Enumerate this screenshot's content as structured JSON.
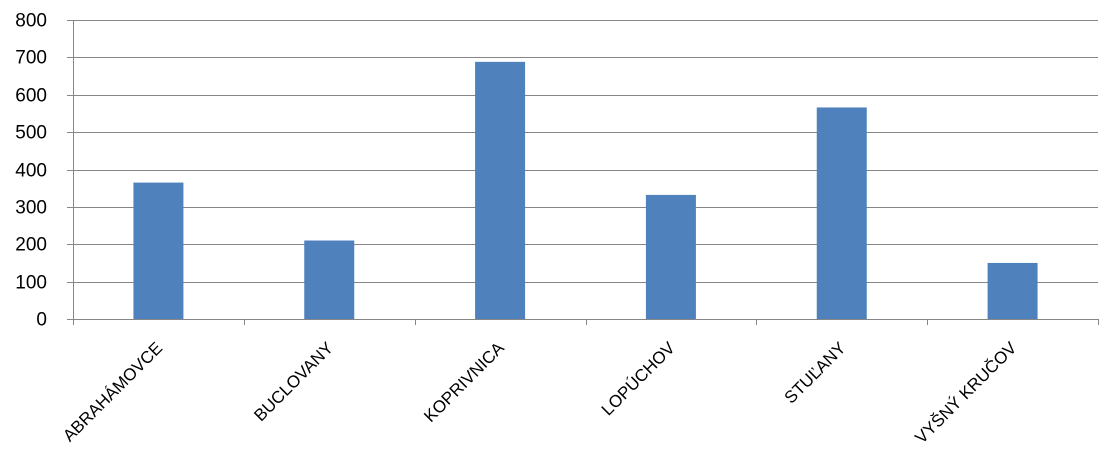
{
  "chart_data": {
    "type": "bar",
    "categories": [
      "ABRAHÁMOVCE",
      "BUCLOVANY",
      "KOPRIVNICA",
      "LOPÚCHOV",
      "STUĽANY",
      "VYŠNÝ KRUČOV"
    ],
    "values": [
      365,
      210,
      688,
      332,
      566,
      150
    ],
    "ylim": [
      0,
      800
    ],
    "yticks": [
      0,
      100,
      200,
      300,
      400,
      500,
      600,
      700,
      800
    ],
    "ytick_labels": [
      "0",
      "100",
      "200",
      "300",
      "400",
      "500",
      "600",
      "700",
      "800"
    ],
    "grid": true,
    "legend": "none",
    "bar_color": "#4f81bd",
    "grid_color": "#868686",
    "axis_color": "#868686"
  }
}
